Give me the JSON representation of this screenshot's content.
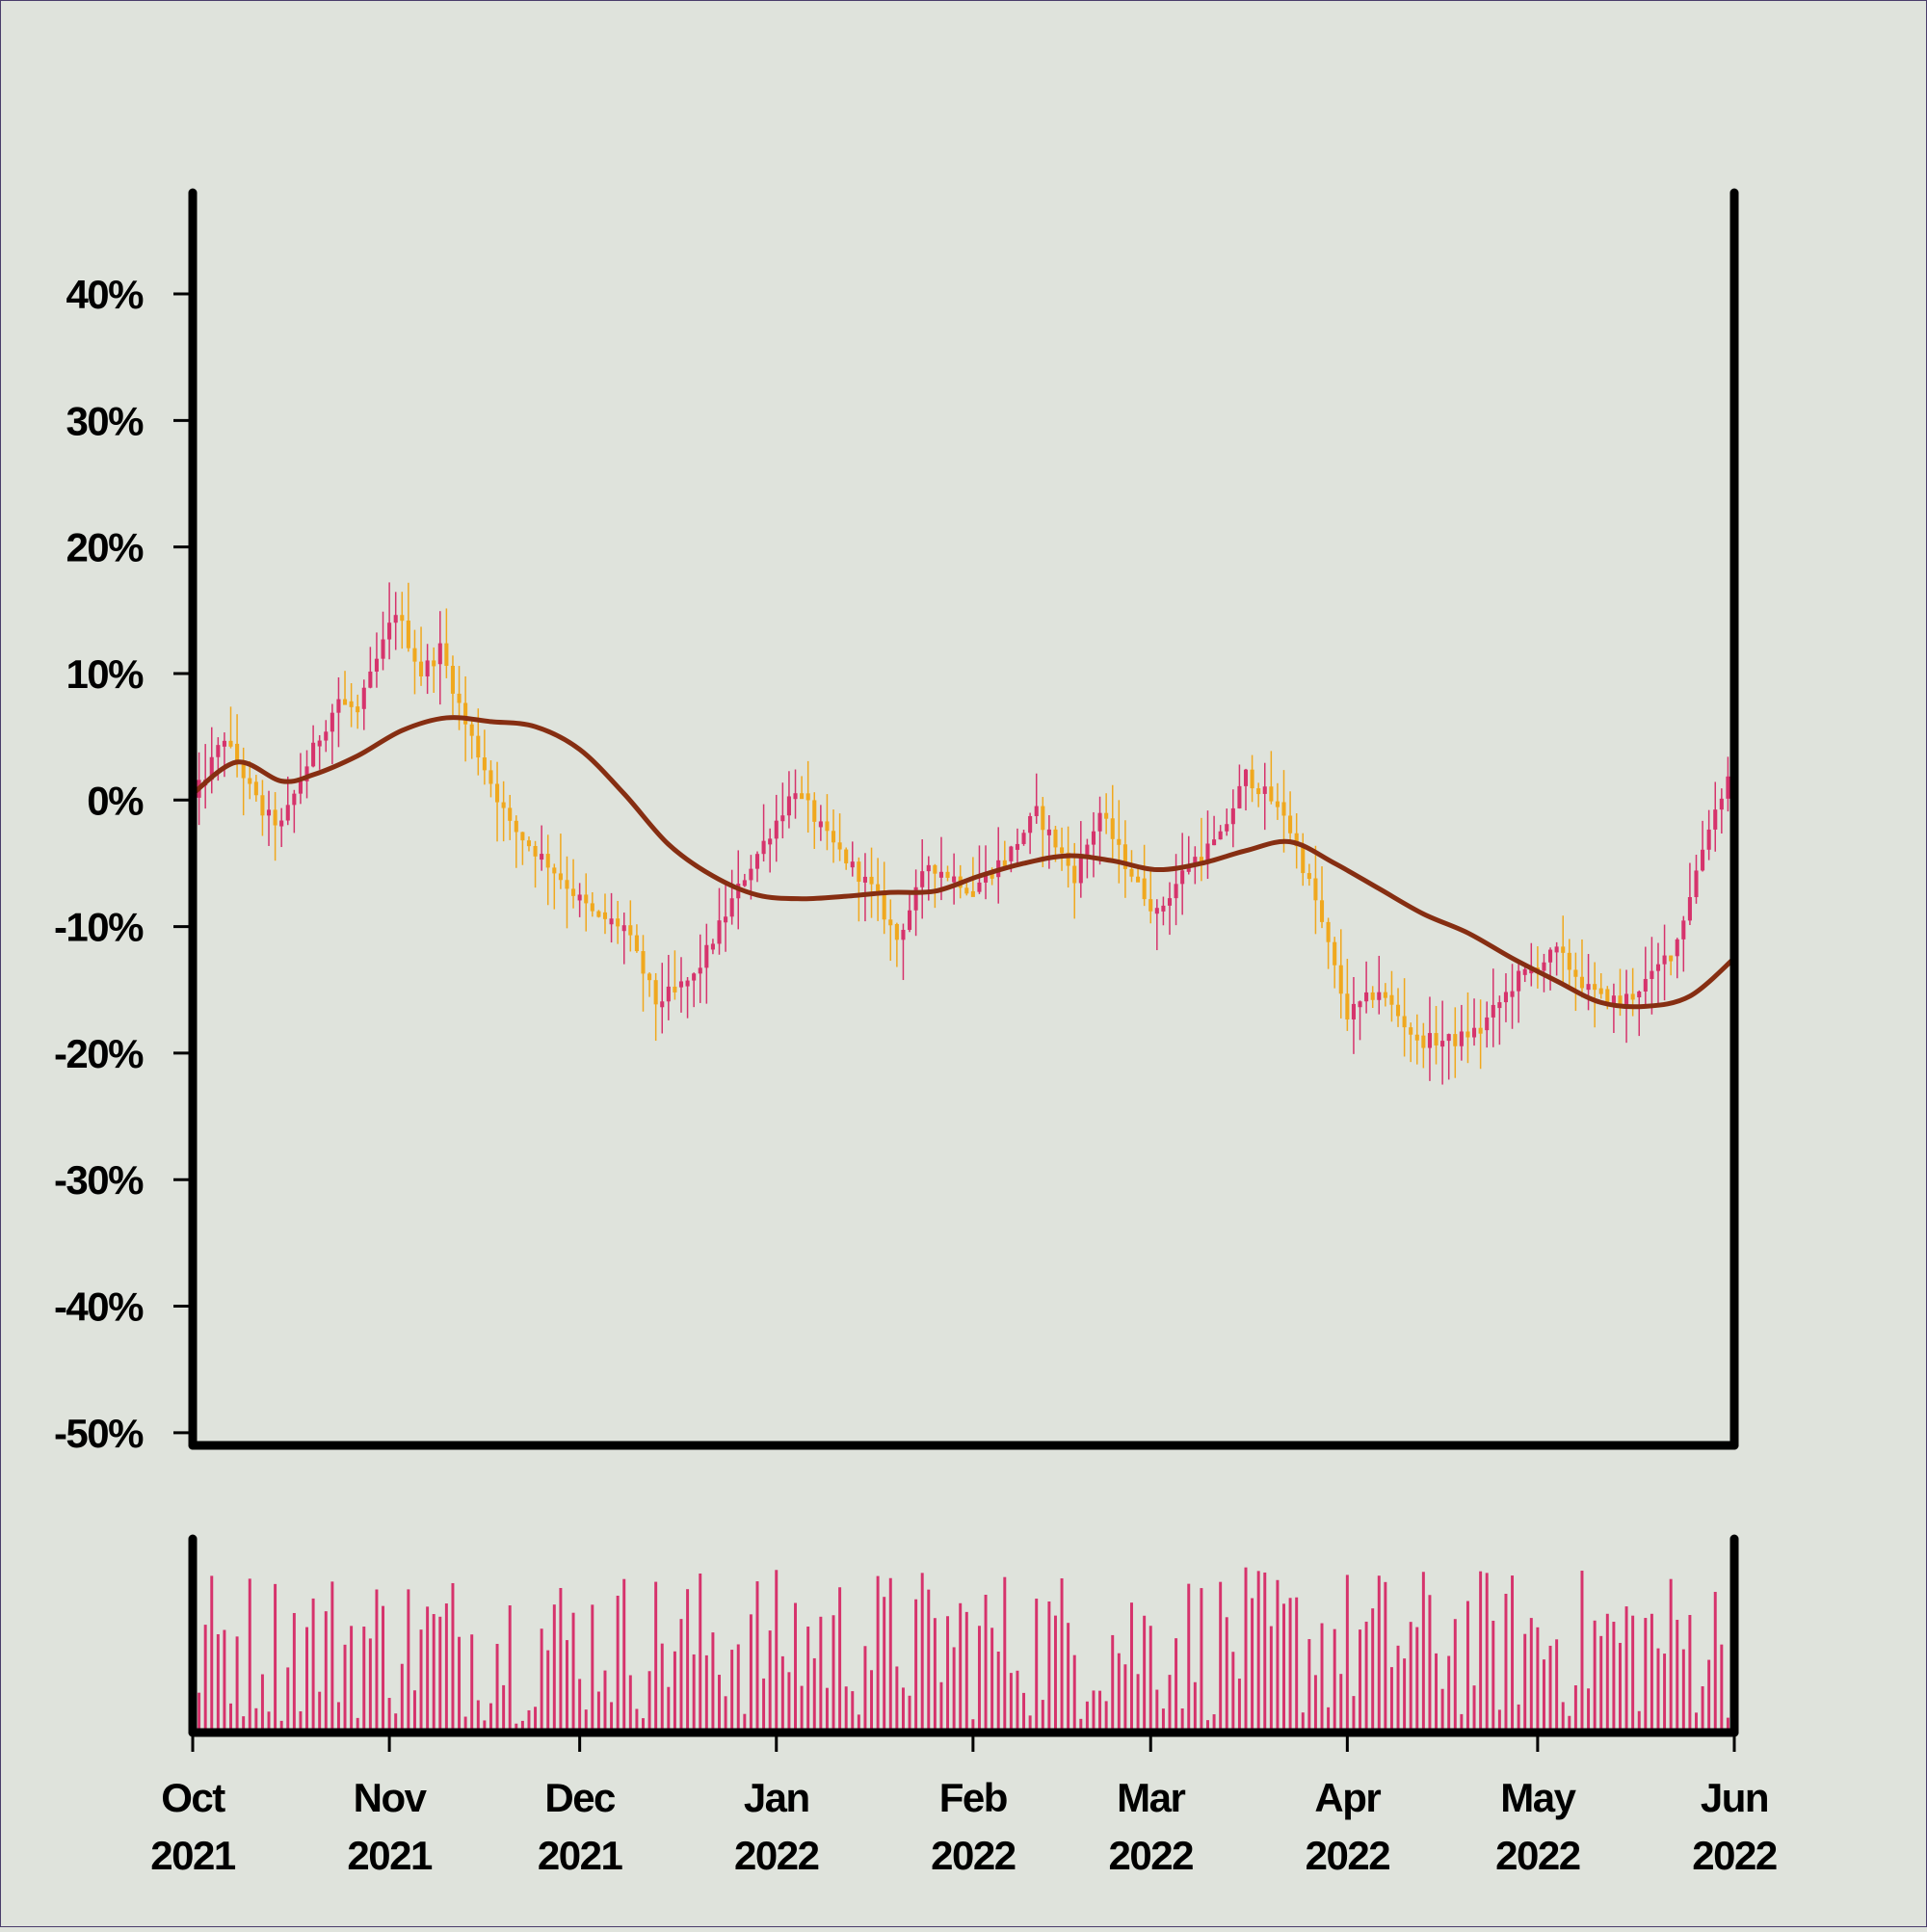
{
  "chart_data": {
    "type": "candlestick",
    "y_tick_labels": [
      "40%",
      "30%",
      "20%",
      "10%",
      "0%",
      "-10%",
      "-20%",
      "-30%",
      "-40%",
      "-50%"
    ],
    "y_ticks": [
      40,
      30,
      20,
      10,
      0,
      -10,
      -20,
      -30,
      -40,
      -50
    ],
    "ylim": [
      -51,
      48
    ],
    "x_ticks": [
      {
        "label": "Oct\n2021",
        "date": "2021-10-01"
      },
      {
        "label": "Nov\n2021",
        "date": "2021-11-01"
      },
      {
        "label": "Dec\n2021",
        "date": "2021-12-01"
      },
      {
        "label": "Jan\n2022",
        "date": "2022-01-01"
      },
      {
        "label": "Feb\n2022",
        "date": "2022-02-01"
      },
      {
        "label": "Mar\n2022",
        "date": "2022-03-01"
      },
      {
        "label": "Apr\n2022",
        "date": "2022-04-01"
      },
      {
        "label": "May\n2022",
        "date": "2022-05-01"
      },
      {
        "label": "Jun\n2022",
        "date": "2022-06-01"
      }
    ],
    "xlim": [
      "2021-10-01",
      "2022-06-01"
    ],
    "price_trend": [
      {
        "date": "2021-10-01",
        "close": 0
      },
      {
        "date": "2021-10-06",
        "close": 5
      },
      {
        "date": "2021-10-12",
        "close": -1
      },
      {
        "date": "2021-10-15",
        "close": -2
      },
      {
        "date": "2021-10-20",
        "close": 4
      },
      {
        "date": "2021-10-24",
        "close": 8
      },
      {
        "date": "2021-10-27",
        "close": 7
      },
      {
        "date": "2021-11-02",
        "close": 15
      },
      {
        "date": "2021-11-06",
        "close": 10
      },
      {
        "date": "2021-11-09",
        "close": 12
      },
      {
        "date": "2021-11-13",
        "close": 6
      },
      {
        "date": "2021-11-20",
        "close": -2
      },
      {
        "date": "2021-11-26",
        "close": -5
      },
      {
        "date": "2021-12-03",
        "close": -9
      },
      {
        "date": "2021-12-08",
        "close": -10
      },
      {
        "date": "2021-12-13",
        "close": -16
      },
      {
        "date": "2021-12-19",
        "close": -14
      },
      {
        "date": "2021-12-27",
        "close": -6
      },
      {
        "date": "2022-01-04",
        "close": 1
      },
      {
        "date": "2022-01-09",
        "close": -3
      },
      {
        "date": "2022-01-16",
        "close": -7
      },
      {
        "date": "2022-01-20",
        "close": -11
      },
      {
        "date": "2022-01-25",
        "close": -5
      },
      {
        "date": "2022-02-01",
        "close": -7
      },
      {
        "date": "2022-02-07",
        "close": -4
      },
      {
        "date": "2022-02-11",
        "close": -1
      },
      {
        "date": "2022-02-17",
        "close": -6
      },
      {
        "date": "2022-02-21",
        "close": -1
      },
      {
        "date": "2022-02-25",
        "close": -5
      },
      {
        "date": "2022-03-02",
        "close": -9
      },
      {
        "date": "2022-03-07",
        "close": -5
      },
      {
        "date": "2022-03-12",
        "close": -3
      },
      {
        "date": "2022-03-16",
        "close": 2
      },
      {
        "date": "2022-03-22",
        "close": -1
      },
      {
        "date": "2022-03-27",
        "close": -8
      },
      {
        "date": "2022-04-01",
        "close": -17
      },
      {
        "date": "2022-04-06",
        "close": -15
      },
      {
        "date": "2022-04-12",
        "close": -19
      },
      {
        "date": "2022-04-18",
        "close": -19
      },
      {
        "date": "2022-04-22",
        "close": -18
      },
      {
        "date": "2022-04-28",
        "close": -14
      },
      {
        "date": "2022-05-04",
        "close": -12
      },
      {
        "date": "2022-05-09",
        "close": -15
      },
      {
        "date": "2022-05-14",
        "close": -16
      },
      {
        "date": "2022-05-19",
        "close": -14
      },
      {
        "date": "2022-05-23",
        "close": -11
      },
      {
        "date": "2022-05-28",
        "close": -2
      },
      {
        "date": "2022-06-01",
        "close": 3
      }
    ],
    "moving_average": [
      {
        "date": "2021-10-01",
        "value": 0.5
      },
      {
        "date": "2021-10-08",
        "value": 3
      },
      {
        "date": "2021-10-15",
        "value": 1.5
      },
      {
        "date": "2021-10-20",
        "value": 2
      },
      {
        "date": "2021-10-27",
        "value": 3.5
      },
      {
        "date": "2021-11-03",
        "value": 5.5
      },
      {
        "date": "2021-11-10",
        "value": 6.5
      },
      {
        "date": "2021-11-17",
        "value": 6.2
      },
      {
        "date": "2021-11-24",
        "value": 5.8
      },
      {
        "date": "2021-12-01",
        "value": 4
      },
      {
        "date": "2021-12-08",
        "value": 0.5
      },
      {
        "date": "2021-12-15",
        "value": -3.5
      },
      {
        "date": "2021-12-22",
        "value": -6
      },
      {
        "date": "2021-12-29",
        "value": -7.5
      },
      {
        "date": "2022-01-05",
        "value": -7.8
      },
      {
        "date": "2022-01-12",
        "value": -7.6
      },
      {
        "date": "2022-01-19",
        "value": -7.3
      },
      {
        "date": "2022-01-26",
        "value": -7.2
      },
      {
        "date": "2022-02-02",
        "value": -6
      },
      {
        "date": "2022-02-09",
        "value": -5
      },
      {
        "date": "2022-02-16",
        "value": -4.4
      },
      {
        "date": "2022-02-23",
        "value": -4.8
      },
      {
        "date": "2022-03-02",
        "value": -5.5
      },
      {
        "date": "2022-03-09",
        "value": -5
      },
      {
        "date": "2022-03-16",
        "value": -4
      },
      {
        "date": "2022-03-23",
        "value": -3.3
      },
      {
        "date": "2022-03-30",
        "value": -5
      },
      {
        "date": "2022-04-06",
        "value": -7
      },
      {
        "date": "2022-04-13",
        "value": -9
      },
      {
        "date": "2022-04-20",
        "value": -10.5
      },
      {
        "date": "2022-04-27",
        "value": -12.5
      },
      {
        "date": "2022-05-04",
        "value": -14.3
      },
      {
        "date": "2022-05-11",
        "value": -16
      },
      {
        "date": "2022-05-18",
        "value": -16.3
      },
      {
        "date": "2022-05-25",
        "value": -15.5
      },
      {
        "date": "2022-06-01",
        "value": -12.5
      }
    ],
    "volume_range": [
      0.05,
      0.95
    ],
    "colors": {
      "background": "#dfe3dc",
      "up_candle": "#d6336c",
      "down_candle": "#f0a81e",
      "moving_average": "#862e12",
      "volume_bar": "#d6336c",
      "axis": "#000000"
    },
    "grid": false,
    "legend": "none"
  }
}
